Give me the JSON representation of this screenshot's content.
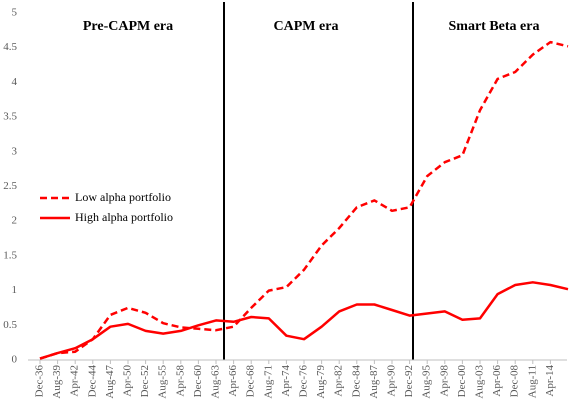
{
  "chart_data": {
    "type": "line",
    "eras": [
      "Pre-CAPM era",
      "CAPM era",
      "Smart Beta era"
    ],
    "categories": [
      "Dec-36",
      "Aug-39",
      "Apr-42",
      "Dec-44",
      "Aug-47",
      "Apr-50",
      "Dec-52",
      "Aug-55",
      "Apr-58",
      "Dec-60",
      "Aug-63",
      "Apr-66",
      "Dec-68",
      "Aug-71",
      "Apr-74",
      "Dec-76",
      "Aug-79",
      "Apr-82",
      "Dec-84",
      "Aug-87",
      "Apr-90",
      "Dec-92",
      "Aug-95",
      "Apr-98",
      "Dec-00",
      "Aug-03",
      "Apr-06",
      "Dec-08",
      "Aug-11",
      "Apr-14",
      null
    ],
    "series": [
      {
        "name": "Low alpha portfolio",
        "color": "#ff0000",
        "dash": true,
        "values": [
          0.02,
          0.1,
          0.12,
          0.3,
          0.65,
          0.75,
          0.68,
          0.53,
          0.47,
          0.45,
          0.43,
          0.48,
          0.75,
          1.0,
          1.05,
          1.3,
          1.65,
          1.9,
          2.2,
          2.3,
          2.15,
          2.2,
          2.65,
          2.85,
          2.95,
          3.6,
          4.05,
          4.15,
          4.4,
          4.58,
          4.52
        ]
      },
      {
        "name": "High alpha portfolio",
        "color": "#ff0000",
        "dash": false,
        "values": [
          0.02,
          0.1,
          0.17,
          0.3,
          0.48,
          0.52,
          0.42,
          0.38,
          0.42,
          0.5,
          0.57,
          0.55,
          0.62,
          0.6,
          0.35,
          0.3,
          0.48,
          0.7,
          0.8,
          0.8,
          0.72,
          0.64,
          0.67,
          0.7,
          0.58,
          0.6,
          0.95,
          1.08,
          1.12,
          1.08,
          1.02
        ]
      }
    ],
    "ylim": [
      0,
      5
    ],
    "yticks": [
      0,
      0.5,
      1,
      1.5,
      2,
      2.5,
      3,
      3.5,
      4,
      4.5,
      5
    ],
    "grid": false
  }
}
